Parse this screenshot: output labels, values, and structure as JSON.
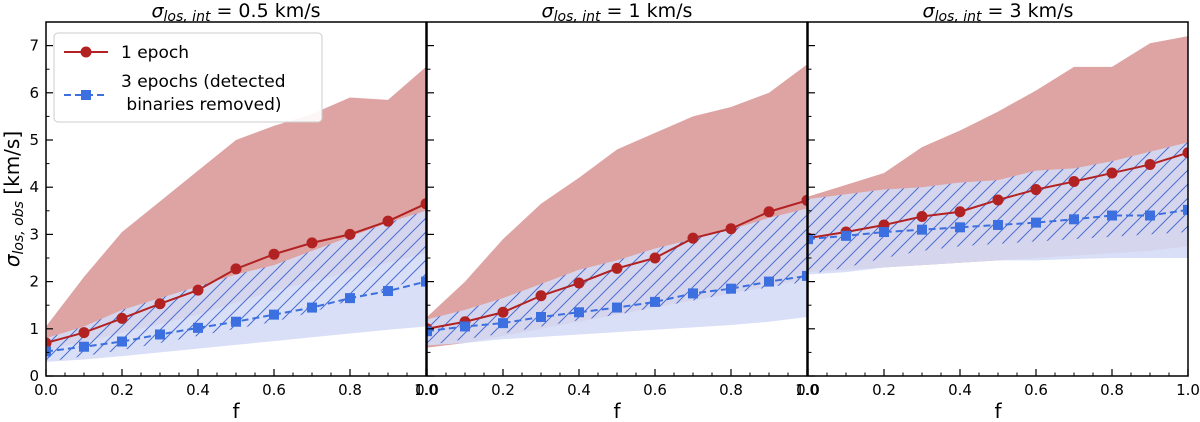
{
  "chart_data": [
    {
      "type": "line",
      "title_symbol": "σ",
      "title_sub": "los, int",
      "title_value": " = 0.5 km/s",
      "xlabel": "f",
      "ylabel_symbol": "σ",
      "ylabel_sub": "los, obs",
      "ylabel_unit": " [km/s]",
      "xlim": [
        0,
        1
      ],
      "ylim": [
        0,
        7.5
      ],
      "xticks": [
        "0.0",
        "0.2",
        "0.4",
        "0.6",
        "0.8",
        "1.0"
      ],
      "yticks": [
        "0",
        "1",
        "2",
        "3",
        "4",
        "5",
        "6",
        "7"
      ],
      "x": [
        0.0,
        0.1,
        0.2,
        0.3,
        0.4,
        0.5,
        0.6,
        0.7,
        0.8,
        0.9,
        1.0
      ],
      "series": [
        {
          "name": "1 epoch",
          "values": [
            0.7,
            0.92,
            1.22,
            1.53,
            1.82,
            2.27,
            2.58,
            2.82,
            3.0,
            3.28,
            3.65
          ],
          "band_low": [
            0.55,
            0.72,
            0.92,
            1.1,
            1.3,
            1.55,
            1.8,
            2.0,
            2.2,
            2.4,
            2.6
          ],
          "band_high": [
            1.05,
            2.1,
            3.05,
            3.7,
            4.35,
            5.0,
            5.3,
            5.55,
            5.9,
            5.85,
            6.55
          ]
        },
        {
          "name": "3 epochs (detected binaries removed)",
          "values": [
            0.52,
            0.62,
            0.73,
            0.88,
            1.02,
            1.15,
            1.3,
            1.45,
            1.65,
            1.8,
            2.0
          ],
          "band_low": [
            0.3,
            0.35,
            0.42,
            0.5,
            0.58,
            0.66,
            0.74,
            0.82,
            0.9,
            0.98,
            1.05
          ],
          "band_high": [
            0.8,
            1.05,
            1.4,
            1.65,
            1.9,
            2.15,
            2.35,
            2.65,
            2.95,
            3.25,
            3.5
          ]
        }
      ],
      "hatch_band": {
        "low": [
          0.3,
          0.42,
          0.55,
          0.7,
          0.85,
          1.0,
          1.15,
          1.35,
          1.6,
          1.85,
          2.1
        ],
        "high": [
          0.8,
          1.05,
          1.4,
          1.65,
          1.9,
          2.15,
          2.35,
          2.65,
          2.95,
          3.25,
          3.5
        ]
      }
    },
    {
      "type": "line",
      "title_symbol": "σ",
      "title_sub": "los, int",
      "title_value": " = 1 km/s",
      "xlabel": "f",
      "xlim": [
        0,
        1
      ],
      "ylim": [
        0,
        7.5
      ],
      "xticks": [
        "0.0",
        "0.2",
        "0.4",
        "0.6",
        "0.8",
        "1.0"
      ],
      "x": [
        0.0,
        0.1,
        0.2,
        0.3,
        0.4,
        0.5,
        0.6,
        0.7,
        0.8,
        0.9,
        1.0
      ],
      "series": [
        {
          "name": "1 epoch",
          "values": [
            1.0,
            1.15,
            1.35,
            1.7,
            1.97,
            2.28,
            2.5,
            2.92,
            3.12,
            3.48,
            3.72
          ],
          "band_low": [
            0.6,
            0.7,
            0.85,
            1.0,
            1.15,
            1.3,
            1.45,
            1.6,
            1.75,
            1.9,
            2.05
          ],
          "band_high": [
            1.25,
            2.0,
            2.9,
            3.65,
            4.2,
            4.8,
            5.15,
            5.5,
            5.7,
            6.0,
            6.6
          ]
        },
        {
          "name": "3 epochs (detected binaries removed)",
          "values": [
            0.95,
            1.05,
            1.12,
            1.25,
            1.35,
            1.45,
            1.57,
            1.75,
            1.85,
            2.0,
            2.12
          ],
          "band_low": [
            0.65,
            0.7,
            0.78,
            0.83,
            0.88,
            0.93,
            0.98,
            1.03,
            1.08,
            1.15,
            1.25
          ],
          "band_high": [
            1.2,
            1.4,
            1.65,
            1.95,
            2.25,
            2.45,
            2.7,
            2.9,
            3.1,
            3.35,
            3.55
          ]
        }
      ],
      "hatch_band": {
        "low": [
          0.65,
          0.78,
          0.9,
          1.05,
          1.18,
          1.3,
          1.45,
          1.6,
          1.75,
          1.88,
          2.0
        ],
        "high": [
          1.2,
          1.4,
          1.65,
          1.95,
          2.25,
          2.45,
          2.7,
          2.9,
          3.1,
          3.35,
          3.55
        ]
      }
    },
    {
      "type": "line",
      "title_symbol": "σ",
      "title_sub": "los, int",
      "title_value": " = 3 km/s",
      "xlabel": "f",
      "xlim": [
        0,
        1
      ],
      "ylim": [
        0,
        7.5
      ],
      "xticks": [
        "0.0",
        "0.2",
        "0.4",
        "0.6",
        "0.8",
        "1.0"
      ],
      "x": [
        0.0,
        0.1,
        0.2,
        0.3,
        0.4,
        0.5,
        0.6,
        0.7,
        0.8,
        0.9,
        1.0
      ],
      "series": [
        {
          "name": "1 epoch",
          "values": [
            2.92,
            3.05,
            3.2,
            3.38,
            3.48,
            3.73,
            3.95,
            4.12,
            4.3,
            4.48,
            4.73
          ],
          "band_low": [
            2.2,
            2.25,
            2.3,
            2.35,
            2.4,
            2.45,
            2.5,
            2.55,
            2.6,
            2.65,
            2.75
          ],
          "band_high": [
            3.8,
            4.05,
            4.3,
            4.85,
            5.2,
            5.6,
            6.05,
            6.55,
            6.55,
            7.05,
            7.2
          ]
        },
        {
          "name": "3 epochs (detected binaries removed)",
          "values": [
            2.9,
            2.97,
            3.05,
            3.1,
            3.15,
            3.2,
            3.25,
            3.32,
            3.4,
            3.4,
            3.52
          ],
          "band_low": [
            2.15,
            2.2,
            2.3,
            2.35,
            2.4,
            2.45,
            2.45,
            2.48,
            2.5,
            2.5,
            2.5
          ],
          "band_high": [
            3.75,
            3.85,
            3.95,
            4.0,
            4.1,
            4.15,
            4.35,
            4.4,
            4.55,
            4.75,
            4.95
          ]
        }
      ],
      "hatch_band": {
        "low": [
          2.15,
          2.3,
          2.5,
          2.65,
          2.75,
          2.8,
          2.85,
          2.9,
          2.95,
          3.0,
          3.05
        ],
        "high": [
          3.75,
          3.85,
          3.95,
          4.0,
          4.1,
          4.15,
          4.35,
          4.4,
          4.55,
          4.75,
          4.95
        ]
      }
    }
  ],
  "legend": {
    "items": [
      {
        "label_lines": [
          "1 epoch"
        ]
      },
      {
        "label_lines": [
          "3 epochs (detected",
          " binaries removed)"
        ]
      }
    ]
  },
  "colors": {
    "red_line": "#b22222",
    "red_band": "#dea3a3",
    "blue_line": "#3c6fe0",
    "blue_band": "#d4dcf6",
    "hatch": "#4a6ed0"
  }
}
